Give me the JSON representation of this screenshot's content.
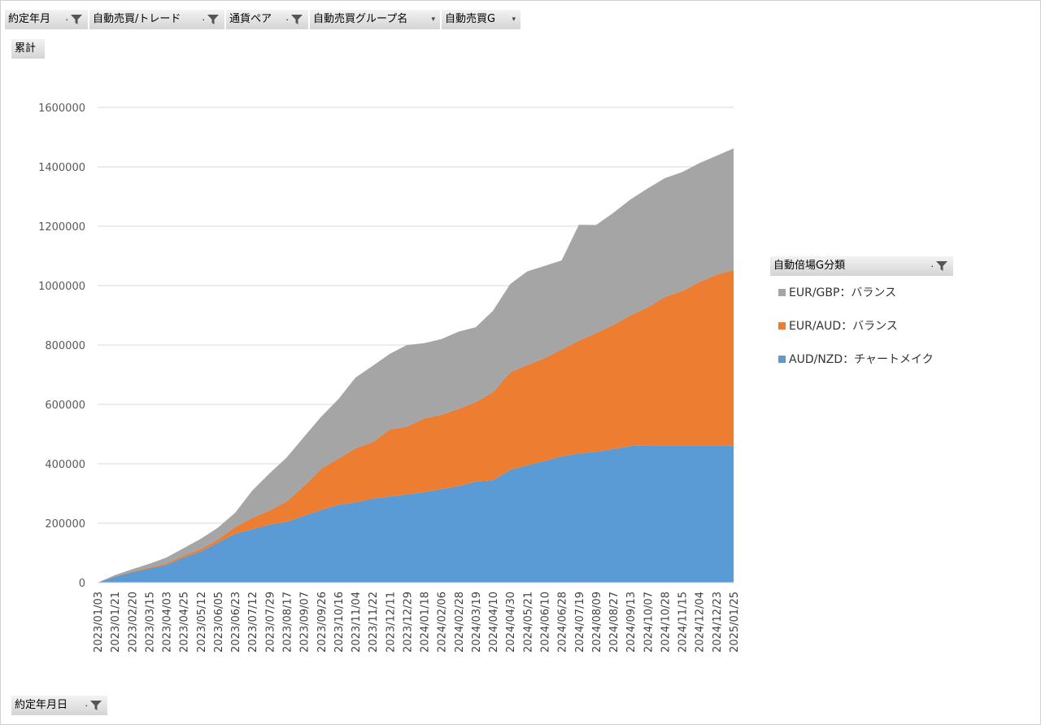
{
  "filters": [
    {
      "label": "約定年月",
      "icon": "filter-icon"
    },
    {
      "label": "自動売買/トレード",
      "icon": "filter-icon"
    },
    {
      "label": "通貨ペア",
      "icon": "filter-icon"
    },
    {
      "label": "自動売買グループ名",
      "icon": "dropdown-arrow-icon"
    },
    {
      "label": "自動売買G",
      "icon": "dropdown-arrow-icon"
    }
  ],
  "values_field": "累計",
  "axis_field": "約定年月日",
  "legend_field": "自動倍場G分類",
  "colors": {
    "eur_gbp": "#a5a5a5",
    "eur_aud": "#ed7d31",
    "aud_nzd": "#5b9bd5"
  },
  "chart_data": {
    "type": "area",
    "stacked": true,
    "title": "",
    "xlabel": "",
    "ylabel": "",
    "ylim": [
      0,
      1600000
    ],
    "y_ticks": [
      "0",
      "200000",
      "400000",
      "600000",
      "800000",
      "1000000",
      "1200000",
      "1400000",
      "1600000"
    ],
    "grid": true,
    "legend_position": "right",
    "x_tick_labels": [
      "2023/01/03",
      "2023/01/21",
      "2023/02/20",
      "2023/03/15",
      "2023/04/03",
      "2023/04/25",
      "2023/05/12",
      "2023/06/05",
      "2023/06/23",
      "2023/07/12",
      "2023/07/29",
      "2023/08/17",
      "2023/09/07",
      "2023/09/26",
      "2023/10/16",
      "2023/11/04",
      "2023/11/22",
      "2023/12/11",
      "2023/12/29",
      "2024/01/18",
      "2024/02/06",
      "2024/02/28",
      "2024/03/19",
      "2024/04/10",
      "2024/04/30",
      "2024/05/21",
      "2024/06/10",
      "2024/06/28",
      "2024/07/19",
      "2024/08/09",
      "2024/08/27",
      "2024/09/13",
      "2024/10/07",
      "2024/10/28",
      "2024/11/15",
      "2024/12/04",
      "2024/12/23",
      "2025/01/25"
    ],
    "series": [
      {
        "name": "AUD/NZD：チャートメイク",
        "values": [
          0,
          20000,
          35000,
          48000,
          60000,
          85000,
          105000,
          135000,
          165000,
          180000,
          195000,
          205000,
          225000,
          245000,
          262000,
          270000,
          283000,
          290000,
          297000,
          305000,
          315000,
          325000,
          340000,
          345000,
          380000,
          395000,
          410000,
          425000,
          435000,
          440000,
          450000,
          460000,
          462000,
          462000,
          462000,
          462000,
          462000,
          462000
        ]
      },
      {
        "name": "EUR/AUD：バランス",
        "values": [
          0,
          1000,
          2000,
          3000,
          4000,
          6000,
          8000,
          10000,
          22000,
          38000,
          48000,
          68000,
          100000,
          138000,
          155000,
          182000,
          190000,
          226000,
          228000,
          248000,
          250000,
          260000,
          268000,
          296000,
          328000,
          338000,
          346000,
          360000,
          380000,
          400000,
          418000,
          440000,
          465000,
          500000,
          520000,
          550000,
          575000,
          590000
        ]
      },
      {
        "name": "EUR/GBP：バランス",
        "values": [
          0,
          4000,
          8000,
          12000,
          20000,
          25000,
          34000,
          40000,
          48000,
          92000,
          125000,
          148000,
          165000,
          175000,
          200000,
          238000,
          257000,
          254000,
          275000,
          253000,
          255000,
          260000,
          252000,
          274000,
          297000,
          315000,
          310000,
          300000,
          390000,
          364000,
          377000,
          390000,
          400000,
          400000,
          400000,
          400000,
          400000,
          410000
        ]
      }
    ]
  }
}
